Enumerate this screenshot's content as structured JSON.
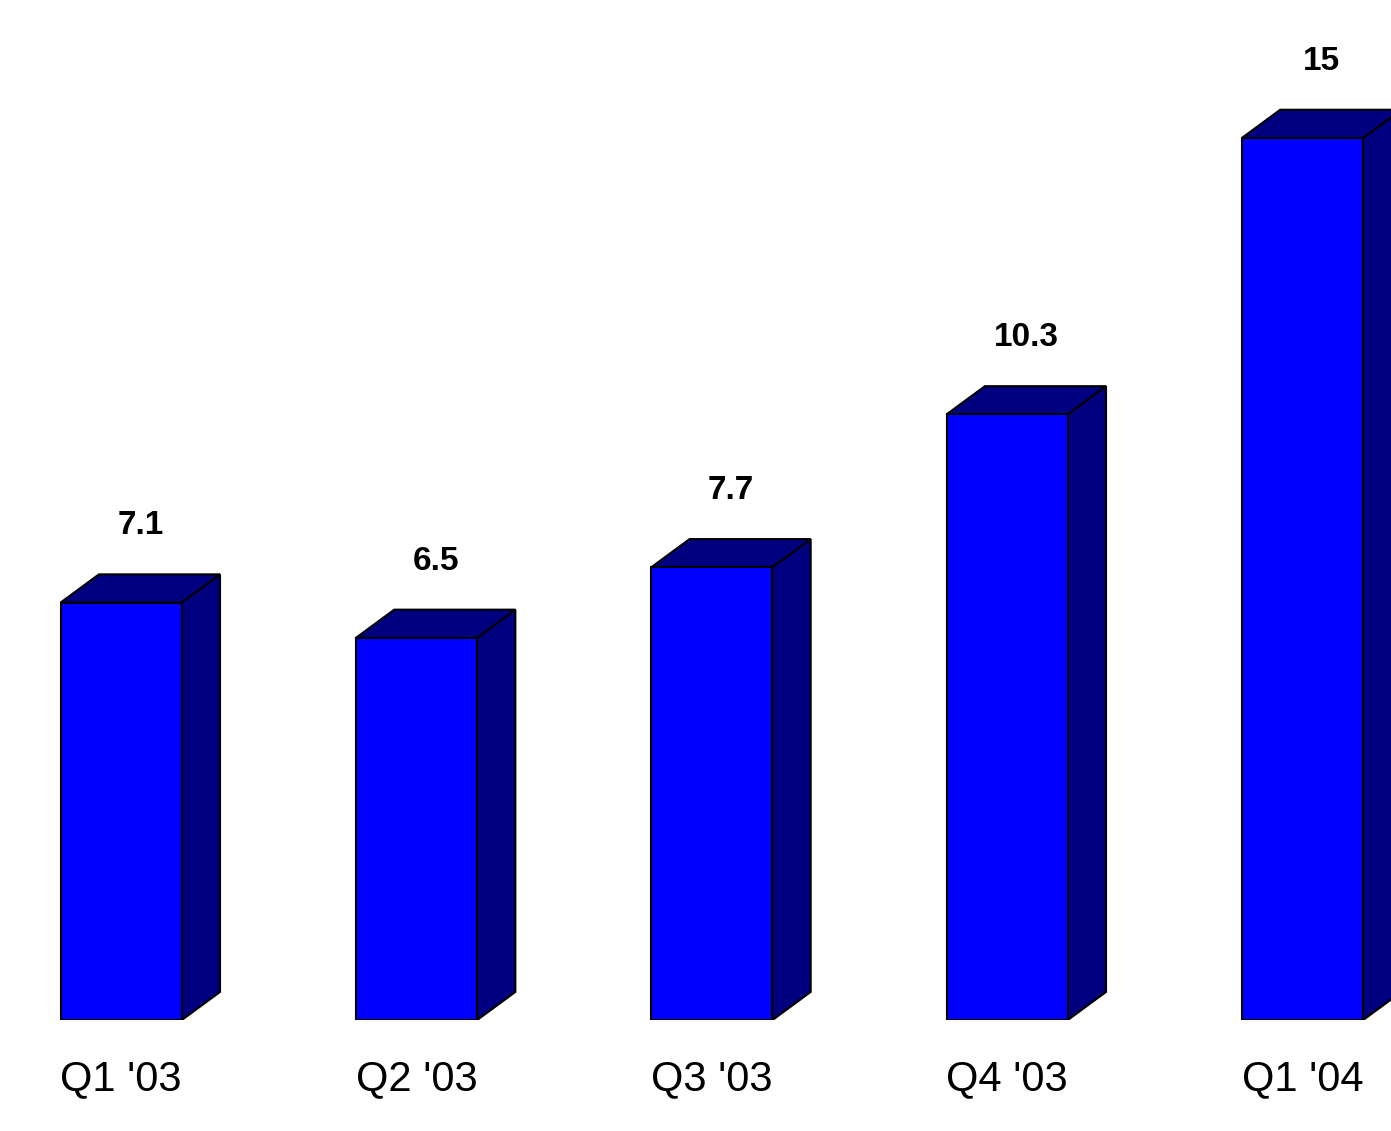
{
  "chart_data": {
    "type": "bar",
    "categories": [
      "Q1 '03",
      "Q2 '03",
      "Q3 '03",
      "Q4 '03",
      "Q1 '04"
    ],
    "values": [
      7.1,
      6.5,
      7.7,
      10.3,
      15
    ],
    "color": "#0000ff",
    "ylim": [
      0,
      16
    ],
    "data_labels": true,
    "tick_labels": "x"
  }
}
